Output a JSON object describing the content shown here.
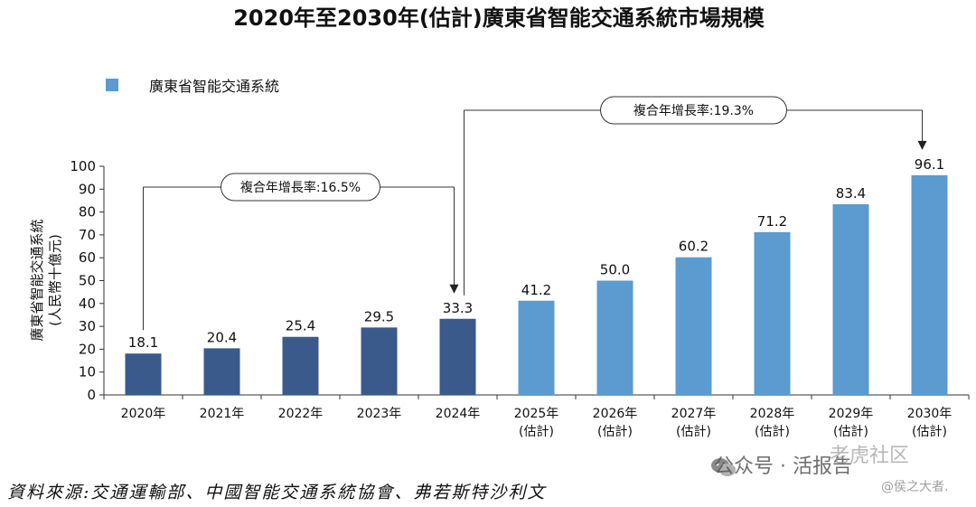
{
  "chart_data": {
    "type": "bar",
    "title": "2020年至2030年(估計)廣東省智能交通系統市場規模",
    "ylabel_line1": "廣東省智能交通系統",
    "ylabel_line2": "(人民幣十億元)",
    "legend": "廣東省智能交通系統",
    "ylim": [
      0,
      100
    ],
    "yticks": [
      0,
      10,
      20,
      30,
      40,
      50,
      60,
      70,
      80,
      90,
      100
    ],
    "categories": [
      {
        "year": "2020年",
        "sub": ""
      },
      {
        "year": "2021年",
        "sub": ""
      },
      {
        "year": "2022年",
        "sub": ""
      },
      {
        "year": "2023年",
        "sub": ""
      },
      {
        "year": "2024年",
        "sub": ""
      },
      {
        "year": "2025年",
        "sub": "(估計)"
      },
      {
        "year": "2026年",
        "sub": "(估計)"
      },
      {
        "year": "2027年",
        "sub": "(估計)"
      },
      {
        "year": "2028年",
        "sub": "(估計)"
      },
      {
        "year": "2029年",
        "sub": "(估計)"
      },
      {
        "year": "2030年",
        "sub": "(估計)"
      }
    ],
    "values": [
      18.1,
      20.4,
      25.4,
      29.5,
      33.3,
      41.2,
      50.0,
      60.2,
      71.2,
      83.4,
      96.1
    ],
    "value_labels": [
      "18.1",
      "20.4",
      "25.4",
      "29.5",
      "33.3",
      "41.2",
      "50.0",
      "60.2",
      "71.2",
      "83.4",
      "96.1"
    ],
    "historical_color": "#3a5a8c",
    "forecast_color": "#5b9bd0",
    "annotations": [
      {
        "text": "複合年增長率:16.5%",
        "from_index": 0,
        "to_index": 4
      },
      {
        "text": "複合年增長率:19.3%",
        "from_index": 4,
        "to_index": 10
      }
    ]
  },
  "source": "資料來源:交通運輸部、中國智能交通系統協會、弗若斯特沙利文",
  "watermark": {
    "wechat": "公众号 · 活报告",
    "site": "老虎社区",
    "author": "@侯之大者."
  }
}
